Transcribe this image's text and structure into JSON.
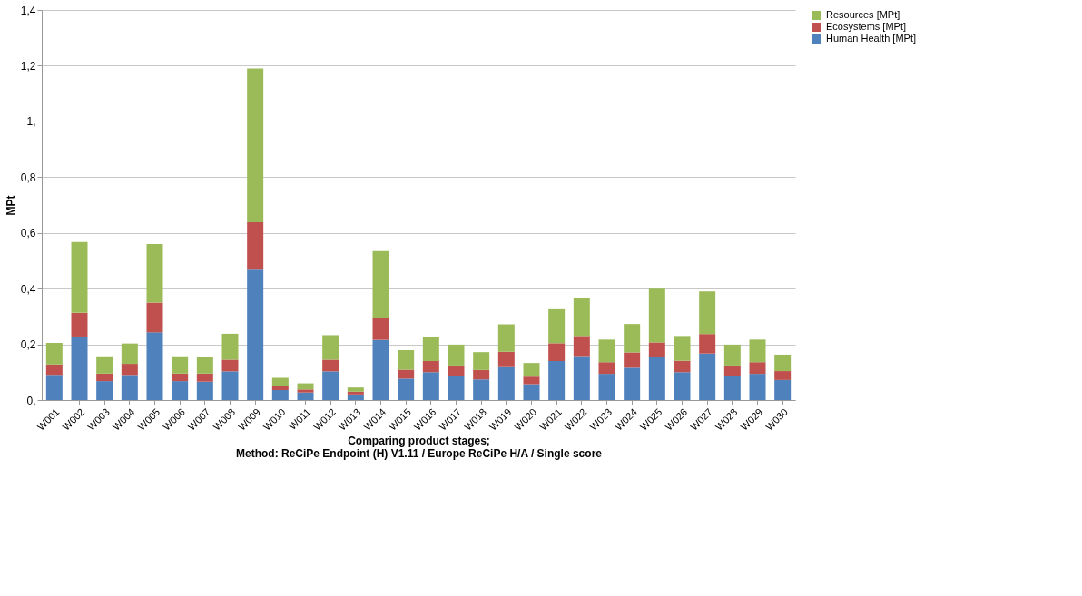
{
  "chart_data": {
    "type": "bar",
    "stacked": true,
    "xlabel": "Comparing product stages;\nMethod: ReCiPe Endpoint (H) V1.11 / Europe ReCiPe H/A / Single score",
    "ylabel": "MPt",
    "categories": [
      "W001",
      "W002",
      "W003",
      "W004",
      "W005",
      "W006",
      "W007",
      "W008",
      "W009",
      "W010",
      "W011",
      "W012",
      "W013",
      "W014",
      "W015",
      "W016",
      "W017",
      "W018",
      "W019",
      "W020",
      "W021",
      "W022",
      "W023",
      "W024",
      "W025",
      "W026",
      "W027",
      "W028",
      "W029",
      "W030"
    ],
    "series": [
      {
        "name": "Human Health [MPt]",
        "color": "#4f81bd",
        "values": [
          0.09,
          0.228,
          0.068,
          0.09,
          0.243,
          0.068,
          0.066,
          0.103,
          0.468,
          0.036,
          0.027,
          0.103,
          0.02,
          0.216,
          0.077,
          0.1,
          0.087,
          0.074,
          0.118,
          0.057,
          0.14,
          0.158,
          0.094,
          0.116,
          0.153,
          0.1,
          0.167,
          0.087,
          0.094,
          0.072
        ]
      },
      {
        "name": "Ecosystems [MPt]",
        "color": "#c0504d",
        "values": [
          0.038,
          0.085,
          0.027,
          0.04,
          0.107,
          0.027,
          0.029,
          0.042,
          0.17,
          0.014,
          0.011,
          0.042,
          0.01,
          0.08,
          0.032,
          0.04,
          0.037,
          0.034,
          0.055,
          0.027,
          0.064,
          0.072,
          0.042,
          0.055,
          0.054,
          0.041,
          0.07,
          0.037,
          0.042,
          0.032
        ]
      },
      {
        "name": "Resources [MPt]",
        "color": "#9bbb59",
        "values": [
          0.077,
          0.254,
          0.062,
          0.073,
          0.21,
          0.062,
          0.06,
          0.093,
          0.552,
          0.03,
          0.022,
          0.088,
          0.015,
          0.239,
          0.07,
          0.088,
          0.075,
          0.064,
          0.099,
          0.049,
          0.122,
          0.136,
          0.081,
          0.102,
          0.193,
          0.089,
          0.153,
          0.075,
          0.081,
          0.059
        ]
      }
    ],
    "ylim": [
      0,
      1.4
    ],
    "yticks": [
      {
        "value": 0,
        "label": "0,"
      },
      {
        "value": 0.2,
        "label": "0,2"
      },
      {
        "value": 0.4,
        "label": "0,4"
      },
      {
        "value": 0.6,
        "label": "0,6"
      },
      {
        "value": 0.8,
        "label": "0,8"
      },
      {
        "value": 1.0,
        "label": "1,"
      },
      {
        "value": 1.2,
        "label": "1,2"
      },
      {
        "value": 1.4,
        "label": "1,4"
      }
    ],
    "grid": "y",
    "legend": "right"
  }
}
